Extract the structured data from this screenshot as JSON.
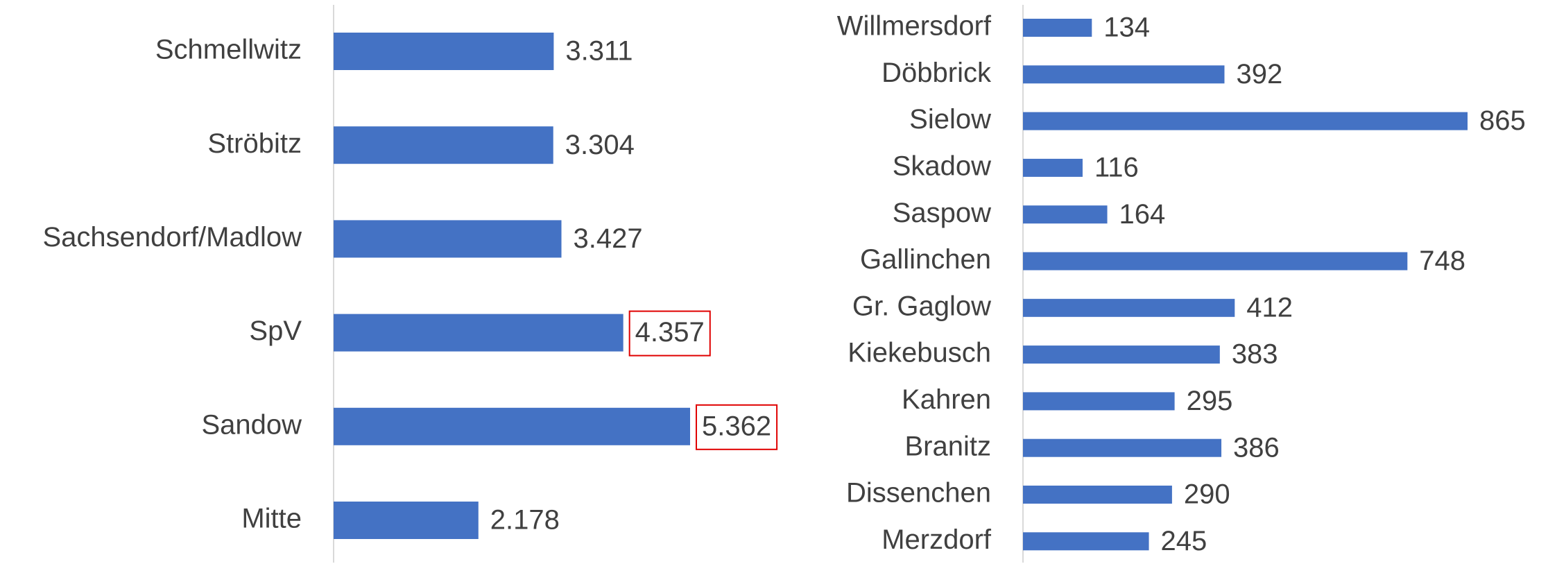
{
  "chart_data": [
    {
      "type": "bar",
      "orientation": "horizontal",
      "color": "#4472c4",
      "categories": [
        "Schmellwitz",
        "Ströbitz",
        "Sachsendorf/Madlow",
        "SpV",
        "Sandow",
        "Mitte"
      ],
      "values": [
        3311,
        3304,
        3427,
        4357,
        5362,
        2178
      ],
      "value_labels": [
        "3.311",
        "3.304",
        "3.427",
        "4.357",
        "5.362",
        "2.178"
      ],
      "value_label_boxes": [
        false,
        false,
        false,
        true,
        true,
        false
      ],
      "value_label_box_color": "#e00000"
    },
    {
      "type": "bar",
      "orientation": "horizontal",
      "color": "#4472c4",
      "categories": [
        "Willmersdorf",
        "Döbbrick",
        "Sielow",
        "Skadow",
        "Saspow",
        "Gallinchen",
        "Gr. Gaglow",
        "Kiekebusch",
        "Kahren",
        "Branitz",
        "Dissenchen",
        "Merzdorf"
      ],
      "values": [
        134,
        392,
        865,
        116,
        164,
        748,
        412,
        383,
        295,
        386,
        290,
        245
      ]
    }
  ]
}
